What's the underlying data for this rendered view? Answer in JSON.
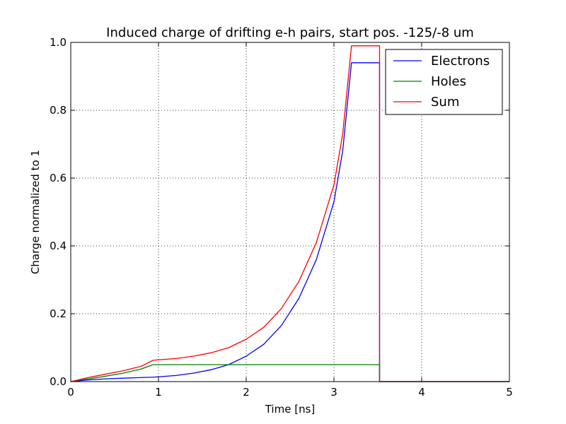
{
  "chart_data": {
    "type": "line",
    "title": "Induced charge of drifting e-h pairs, start pos. -125/-8 um",
    "xlabel": "Time [ns]",
    "ylabel": "Charge normalized to 1",
    "xlim": [
      0,
      5
    ],
    "ylim": [
      0,
      1
    ],
    "x_ticks": [
      0,
      1,
      2,
      3,
      4,
      5
    ],
    "x_tick_labels": [
      "0",
      "1",
      "2",
      "3",
      "4",
      "5"
    ],
    "y_ticks": [
      0,
      0.2,
      0.4,
      0.6,
      0.8,
      1.0
    ],
    "y_tick_labels": [
      "0.0",
      "0.2",
      "0.4",
      "0.6",
      "0.8",
      "1.0"
    ],
    "grid": true,
    "legend_position": "top-right",
    "series": [
      {
        "name": "Electrons",
        "color": "#0000ff",
        "x": [
          0,
          0.2,
          0.4,
          0.6,
          0.8,
          0.94,
          1.2,
          1.4,
          1.6,
          1.8,
          2.0,
          2.2,
          2.4,
          2.6,
          2.8,
          3.0,
          3.1,
          3.2,
          3.52,
          3.52,
          5.0
        ],
        "y": [
          0,
          0.005,
          0.008,
          0.01,
          0.012,
          0.013,
          0.018,
          0.025,
          0.035,
          0.05,
          0.075,
          0.11,
          0.165,
          0.245,
          0.36,
          0.53,
          0.68,
          0.94,
          0.94,
          0,
          0
        ]
      },
      {
        "name": "Holes",
        "color": "#008000",
        "x": [
          0,
          0.2,
          0.4,
          0.6,
          0.8,
          0.94,
          1.0,
          2.0,
          3.0,
          3.52,
          3.52,
          5.0
        ],
        "y": [
          0,
          0.008,
          0.016,
          0.025,
          0.037,
          0.05,
          0.05,
          0.05,
          0.05,
          0.05,
          0,
          0
        ]
      },
      {
        "name": "Sum",
        "color": "#ff0000",
        "x": [
          0,
          0.2,
          0.4,
          0.6,
          0.8,
          0.94,
          1.2,
          1.4,
          1.6,
          1.8,
          2.0,
          2.2,
          2.4,
          2.6,
          2.8,
          3.0,
          3.1,
          3.2,
          3.52,
          3.52,
          5.0
        ],
        "y": [
          0,
          0.012,
          0.022,
          0.032,
          0.045,
          0.063,
          0.068,
          0.075,
          0.085,
          0.1,
          0.125,
          0.16,
          0.215,
          0.295,
          0.41,
          0.58,
          0.73,
          0.99,
          0.99,
          0,
          0
        ]
      }
    ]
  }
}
